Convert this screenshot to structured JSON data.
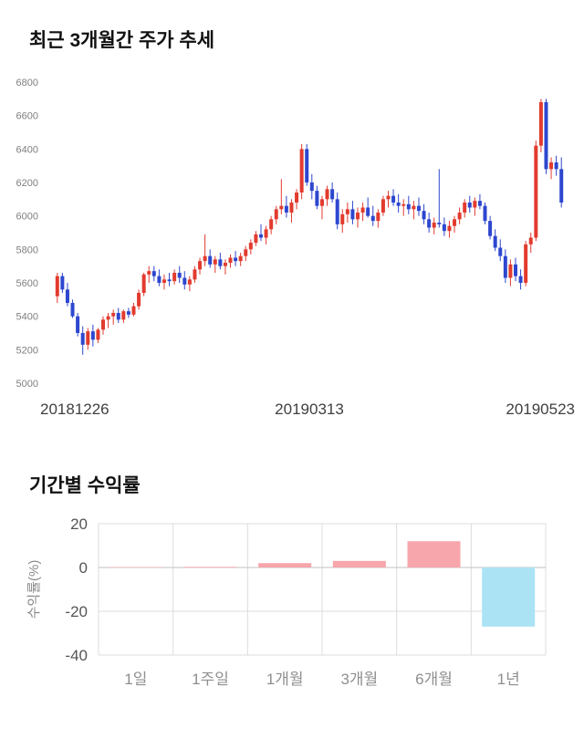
{
  "chart_data": [
    {
      "type": "candlestick",
      "title": "최근 3개월간 주가 추세",
      "ylim": [
        5000,
        6800
      ],
      "y_ticks": [
        6800,
        6600,
        6400,
        6200,
        6000,
        5800,
        5600,
        5400,
        5200,
        5000
      ],
      "x_tick_labels": [
        "20181226",
        "20190313",
        "20190523"
      ],
      "grid": false,
      "legend": "none",
      "up_color": "#e23b2e",
      "down_color": "#2d47cf",
      "candles_ohlc": [
        [
          5520,
          5660,
          5480,
          5640
        ],
        [
          5640,
          5660,
          5540,
          5560
        ],
        [
          5560,
          5600,
          5460,
          5480
        ],
        [
          5480,
          5500,
          5390,
          5400
        ],
        [
          5400,
          5420,
          5280,
          5300
        ],
        [
          5300,
          5340,
          5170,
          5230
        ],
        [
          5230,
          5330,
          5200,
          5310
        ],
        [
          5310,
          5350,
          5220,
          5260
        ],
        [
          5260,
          5330,
          5240,
          5320
        ],
        [
          5320,
          5400,
          5290,
          5380
        ],
        [
          5380,
          5420,
          5330,
          5400
        ],
        [
          5400,
          5440,
          5350,
          5420
        ],
        [
          5420,
          5450,
          5360,
          5380
        ],
        [
          5380,
          5440,
          5360,
          5430
        ],
        [
          5430,
          5450,
          5390,
          5410
        ],
        [
          5410,
          5480,
          5400,
          5460
        ],
        [
          5460,
          5560,
          5440,
          5540
        ],
        [
          5540,
          5660,
          5520,
          5650
        ],
        [
          5650,
          5700,
          5600,
          5670
        ],
        [
          5670,
          5700,
          5610,
          5640
        ],
        [
          5640,
          5680,
          5580,
          5600
        ],
        [
          5600,
          5650,
          5560,
          5620
        ],
        [
          5620,
          5660,
          5580,
          5610
        ],
        [
          5610,
          5680,
          5590,
          5660
        ],
        [
          5660,
          5700,
          5600,
          5630
        ],
        [
          5630,
          5670,
          5560,
          5590
        ],
        [
          5590,
          5640,
          5550,
          5620
        ],
        [
          5620,
          5700,
          5600,
          5680
        ],
        [
          5680,
          5750,
          5650,
          5730
        ],
        [
          5730,
          5890,
          5700,
          5760
        ],
        [
          5760,
          5800,
          5690,
          5710
        ],
        [
          5710,
          5760,
          5660,
          5740
        ],
        [
          5740,
          5780,
          5680,
          5700
        ],
        [
          5700,
          5740,
          5650,
          5720
        ],
        [
          5720,
          5770,
          5690,
          5750
        ],
        [
          5750,
          5790,
          5700,
          5730
        ],
        [
          5730,
          5780,
          5700,
          5760
        ],
        [
          5760,
          5820,
          5730,
          5800
        ],
        [
          5800,
          5860,
          5770,
          5840
        ],
        [
          5840,
          5910,
          5820,
          5890
        ],
        [
          5890,
          5950,
          5850,
          5870
        ],
        [
          5870,
          5940,
          5830,
          5920
        ],
        [
          5920,
          6000,
          5890,
          5980
        ],
        [
          5980,
          6060,
          5950,
          6040
        ],
        [
          6040,
          6220,
          6010,
          6060
        ],
        [
          6060,
          6120,
          5990,
          6020
        ],
        [
          6020,
          6100,
          5960,
          6080
        ],
        [
          6080,
          6160,
          6040,
          6140
        ],
        [
          6140,
          6430,
          6100,
          6400
        ],
        [
          6400,
          6430,
          6180,
          6200
        ],
        [
          6200,
          6250,
          6100,
          6150
        ],
        [
          6150,
          6180,
          6040,
          6060
        ],
        [
          6060,
          6120,
          5980,
          6100
        ],
        [
          6100,
          6180,
          6060,
          6160
        ],
        [
          6160,
          6200,
          6080,
          6100
        ],
        [
          6100,
          6140,
          5920,
          5950
        ],
        [
          5950,
          6040,
          5900,
          6010
        ],
        [
          6010,
          6080,
          5960,
          6040
        ],
        [
          6040,
          6090,
          5950,
          5980
        ],
        [
          5980,
          6050,
          5930,
          6020
        ],
        [
          6020,
          6080,
          5970,
          6050
        ],
        [
          6050,
          6110,
          5990,
          6000
        ],
        [
          6000,
          6060,
          5940,
          5970
        ],
        [
          5970,
          6040,
          5930,
          6020
        ],
        [
          6020,
          6120,
          6000,
          6100
        ],
        [
          6100,
          6150,
          6050,
          6120
        ],
        [
          6120,
          6160,
          6060,
          6080
        ],
        [
          6080,
          6130,
          6020,
          6060
        ],
        [
          6060,
          6100,
          6000,
          6070
        ],
        [
          6070,
          6120,
          6010,
          6040
        ],
        [
          6040,
          6090,
          5980,
          6060
        ],
        [
          6060,
          6110,
          6000,
          6030
        ],
        [
          6030,
          6070,
          5950,
          5980
        ],
        [
          5980,
          6020,
          5900,
          5930
        ],
        [
          5930,
          5990,
          5890,
          5960
        ],
        [
          5960,
          6280,
          5930,
          5950
        ],
        [
          5950,
          5990,
          5880,
          5910
        ],
        [
          5910,
          5970,
          5870,
          5940
        ],
        [
          5940,
          6000,
          5900,
          5980
        ],
        [
          5980,
          6050,
          5950,
          6020
        ],
        [
          6020,
          6100,
          5990,
          6080
        ],
        [
          6080,
          6120,
          6020,
          6050
        ],
        [
          6050,
          6110,
          6000,
          6090
        ],
        [
          6090,
          6130,
          6040,
          6060
        ],
        [
          6060,
          6080,
          5950,
          5970
        ],
        [
          5970,
          6000,
          5860,
          5880
        ],
        [
          5880,
          5920,
          5790,
          5810
        ],
        [
          5810,
          5860,
          5730,
          5760
        ],
        [
          5760,
          5800,
          5600,
          5630
        ],
        [
          5630,
          5740,
          5580,
          5710
        ],
        [
          5710,
          5750,
          5610,
          5640
        ],
        [
          5640,
          5680,
          5560,
          5600
        ],
        [
          5600,
          5850,
          5580,
          5830
        ],
        [
          5830,
          5900,
          5780,
          5870
        ],
        [
          5870,
          6450,
          5850,
          6420
        ],
        [
          6420,
          6700,
          6380,
          6680
        ],
        [
          6680,
          6700,
          6250,
          6280
        ],
        [
          6280,
          6350,
          6220,
          6320
        ],
        [
          6320,
          6360,
          6240,
          6280
        ],
        [
          6280,
          6350,
          6050,
          6080
        ]
      ]
    },
    {
      "type": "bar",
      "title": "기간별 수익률",
      "ylabel": "수익률(%)",
      "categories": [
        "1일",
        "1주일",
        "1개월",
        "3개월",
        "6개월",
        "1년"
      ],
      "values": [
        0.2,
        0.3,
        2,
        3,
        12,
        -27
      ],
      "y_ticks": [
        20,
        0,
        -20,
        -40
      ],
      "ylim": [
        -40,
        20
      ],
      "grid": true,
      "legend": "none",
      "positive_color": "#f7a6ab",
      "negative_color": "#abe3f5",
      "gridline_color": "#dcdcdc",
      "zeroline_color": "#c2c2c2"
    }
  ]
}
